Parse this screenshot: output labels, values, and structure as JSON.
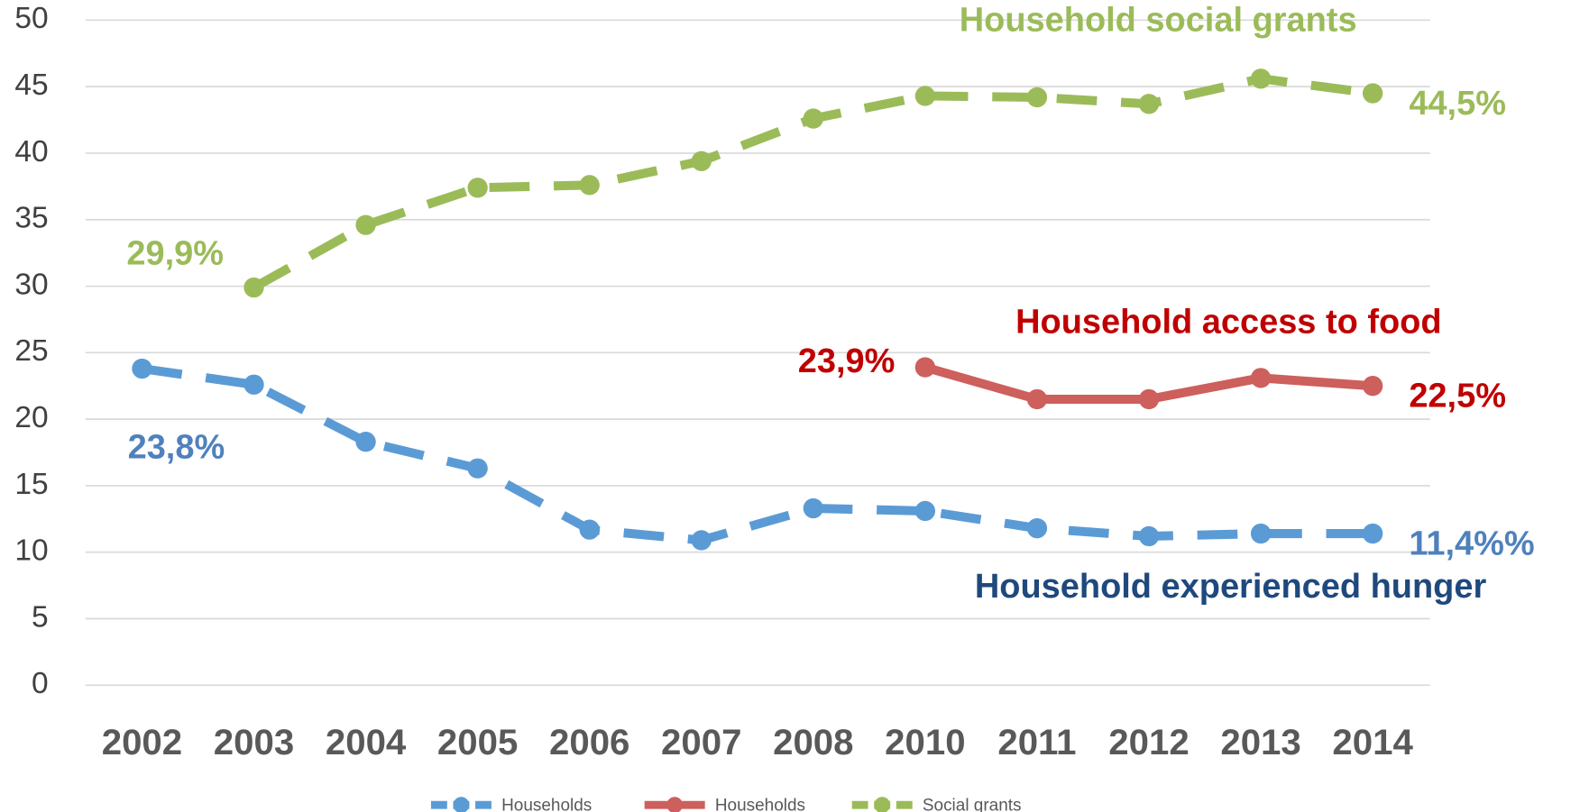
{
  "chart_data": {
    "type": "line",
    "categories": [
      "2002",
      "2003",
      "2004",
      "2005",
      "2006",
      "2007",
      "2008",
      "2010",
      "2011",
      "2012",
      "2013",
      "2014"
    ],
    "series": [
      {
        "name": "Households",
        "color": "#5b9bd5",
        "dashed": true,
        "values": [
          23.8,
          22.6,
          18.3,
          16.3,
          11.7,
          10.9,
          13.3,
          13.1,
          11.8,
          11.2,
          11.4,
          11.4
        ],
        "value_labels": [
          "23,8%",
          null,
          null,
          null,
          null,
          null,
          null,
          null,
          null,
          null,
          null,
          "11,4%%"
        ],
        "label_color": "#4f81bd"
      },
      {
        "name": "Households",
        "color": "#cd5f5c",
        "dashed": false,
        "values": [
          null,
          null,
          null,
          null,
          null,
          null,
          null,
          23.9,
          21.5,
          21.5,
          23.1,
          22.5
        ],
        "value_labels": [
          null,
          null,
          null,
          null,
          null,
          null,
          null,
          "23,9%",
          null,
          null,
          null,
          "22,5%"
        ],
        "label_color": "#c00000"
      },
      {
        "name": "Social grants",
        "color": "#9bbb59",
        "dashed": true,
        "values": [
          null,
          29.9,
          34.6,
          37.4,
          37.6,
          39.4,
          42.6,
          44.3,
          44.2,
          43.7,
          45.6,
          44.5
        ],
        "value_labels": [
          null,
          "29,9%",
          null,
          null,
          null,
          null,
          null,
          null,
          null,
          null,
          null,
          "44,5%"
        ],
        "label_color": "#9bbb59"
      }
    ],
    "annotations": [
      {
        "text": "Household social grants",
        "color": "#9bbb59"
      },
      {
        "text": "Household access to food",
        "color": "#c00000"
      },
      {
        "text": "Household experienced hunger",
        "color": "#1f497d"
      }
    ],
    "ylim": [
      0,
      50
    ],
    "yticks": [
      0,
      5,
      10,
      15,
      20,
      25,
      30,
      35,
      40,
      45,
      50
    ],
    "grid": true,
    "legend": "bottom"
  }
}
